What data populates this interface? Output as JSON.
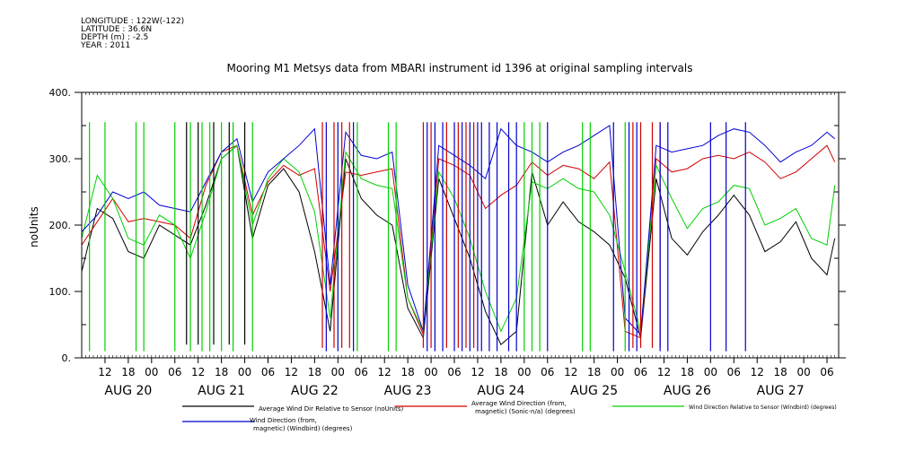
{
  "header": {
    "meta": [
      "LONGITUDE : 122W(-122)",
      "LATITUDE : 36.6N",
      "DEPTH (m) : -2.5",
      "YEAR : 2011"
    ]
  },
  "chart_data": {
    "type": "line",
    "title": "Mooring M1 Metsys data from MBARI instrument id 1396 at original sampling intervals",
    "ylabel": "noUnits",
    "xlabel": "",
    "ylim": [
      0,
      400
    ],
    "yticks": [
      0,
      100,
      200,
      300,
      400
    ],
    "ytick_labels": [
      "0.",
      "100.",
      "200.",
      "300.",
      "400."
    ],
    "x_unit": "hours since 2011-08-19 06:00",
    "xlim": [
      0,
      195
    ],
    "hour_ticks": [
      {
        "x": 6,
        "label": "12"
      },
      {
        "x": 12,
        "label": "18"
      },
      {
        "x": 18,
        "label": "00"
      },
      {
        "x": 24,
        "label": "06"
      },
      {
        "x": 30,
        "label": "12"
      },
      {
        "x": 36,
        "label": "18"
      },
      {
        "x": 42,
        "label": "00"
      },
      {
        "x": 48,
        "label": "06"
      },
      {
        "x": 54,
        "label": "12"
      },
      {
        "x": 60,
        "label": "18"
      },
      {
        "x": 66,
        "label": "00"
      },
      {
        "x": 72,
        "label": "06"
      },
      {
        "x": 78,
        "label": "12"
      },
      {
        "x": 84,
        "label": "18"
      },
      {
        "x": 90,
        "label": "00"
      },
      {
        "x": 96,
        "label": "06"
      },
      {
        "x": 102,
        "label": "12"
      },
      {
        "x": 108,
        "label": "18"
      },
      {
        "x": 114,
        "label": "00"
      },
      {
        "x": 120,
        "label": "06"
      },
      {
        "x": 126,
        "label": "12"
      },
      {
        "x": 132,
        "label": "18"
      },
      {
        "x": 138,
        "label": "00"
      },
      {
        "x": 144,
        "label": "06"
      },
      {
        "x": 150,
        "label": "12"
      },
      {
        "x": 156,
        "label": "18"
      },
      {
        "x": 162,
        "label": "00"
      },
      {
        "x": 168,
        "label": "06"
      },
      {
        "x": 174,
        "label": "12"
      },
      {
        "x": 180,
        "label": "18"
      },
      {
        "x": 186,
        "label": "00"
      },
      {
        "x": 192,
        "label": "06"
      }
    ],
    "day_labels": [
      {
        "x": 12,
        "label": "AUG 20"
      },
      {
        "x": 36,
        "label": "AUG 21"
      },
      {
        "x": 60,
        "label": "AUG 22"
      },
      {
        "x": 84,
        "label": "AUG 23"
      },
      {
        "x": 108,
        "label": "AUG 24"
      },
      {
        "x": 132,
        "label": "AUG 25"
      },
      {
        "x": 156,
        "label": "AUG 26"
      },
      {
        "x": 180,
        "label": "AUG 27"
      }
    ],
    "series": [
      {
        "name": "Average Wind Dir Relative to Sensor (noUnits)",
        "color": "#000000",
        "x": [
          0,
          4,
          8,
          12,
          16,
          20,
          24,
          28,
          32,
          36,
          40,
          44,
          48,
          52,
          56,
          60,
          64,
          68,
          72,
          76,
          80,
          84,
          88,
          92,
          96,
          100,
          104,
          108,
          112,
          116,
          120,
          124,
          128,
          132,
          136,
          140,
          144,
          148,
          152,
          156,
          160,
          164,
          168,
          172,
          176,
          180,
          184,
          188,
          192,
          194
        ],
        "y": [
          130,
          225,
          210,
          160,
          150,
          200,
          185,
          170,
          230,
          300,
          320,
          180,
          260,
          285,
          250,
          160,
          40,
          300,
          240,
          215,
          200,
          75,
          30,
          270,
          210,
          150,
          70,
          20,
          40,
          280,
          200,
          235,
          205,
          190,
          170,
          120,
          30,
          270,
          180,
          155,
          190,
          215,
          245,
          215,
          160,
          175,
          205,
          150,
          125,
          180
        ]
      },
      {
        "name": "Average Wind Direction (from, magnetic) (Sonic-n/a) (degrees)",
        "color": "#d00000",
        "x": [
          0,
          4,
          8,
          12,
          16,
          20,
          24,
          28,
          32,
          36,
          40,
          44,
          48,
          52,
          56,
          60,
          64,
          68,
          72,
          76,
          80,
          84,
          88,
          92,
          96,
          100,
          104,
          108,
          112,
          116,
          120,
          124,
          128,
          132,
          136,
          140,
          144,
          148,
          152,
          156,
          160,
          164,
          168,
          172,
          176,
          180,
          184,
          188,
          192,
          194
        ],
        "y": [
          170,
          205,
          240,
          205,
          210,
          205,
          200,
          180,
          260,
          310,
          320,
          215,
          265,
          290,
          275,
          285,
          100,
          280,
          275,
          280,
          285,
          90,
          35,
          300,
          290,
          275,
          225,
          245,
          260,
          295,
          275,
          290,
          285,
          270,
          295,
          40,
          30,
          300,
          280,
          285,
          300,
          305,
          300,
          310,
          295,
          270,
          280,
          300,
          320,
          295
        ]
      },
      {
        "name": "Wind Direction Relative to Sensor (Windbird) (degrees)",
        "color": "#00d000",
        "x": [
          0,
          4,
          8,
          12,
          16,
          20,
          24,
          28,
          32,
          36,
          40,
          44,
          48,
          52,
          56,
          60,
          64,
          68,
          72,
          76,
          80,
          84,
          88,
          92,
          96,
          100,
          104,
          108,
          112,
          116,
          120,
          124,
          128,
          132,
          136,
          140,
          144,
          148,
          152,
          156,
          160,
          164,
          168,
          172,
          176,
          180,
          184,
          188,
          192,
          194
        ],
        "y": [
          180,
          275,
          240,
          180,
          170,
          215,
          200,
          150,
          220,
          300,
          320,
          200,
          270,
          300,
          280,
          220,
          60,
          310,
          270,
          260,
          255,
          90,
          40,
          280,
          240,
          180,
          100,
          40,
          90,
          265,
          255,
          270,
          255,
          250,
          215,
          130,
          40,
          290,
          240,
          195,
          225,
          235,
          260,
          255,
          200,
          210,
          225,
          180,
          170,
          260
        ]
      },
      {
        "name": "Wind Direction (from, magnetic) (Windbird) (degrees)",
        "color": "#0000d0",
        "x": [
          0,
          4,
          8,
          12,
          16,
          20,
          24,
          28,
          32,
          36,
          40,
          44,
          48,
          52,
          56,
          60,
          64,
          68,
          72,
          76,
          80,
          84,
          88,
          92,
          96,
          100,
          104,
          108,
          112,
          116,
          120,
          124,
          128,
          132,
          136,
          140,
          144,
          148,
          152,
          156,
          160,
          164,
          168,
          172,
          176,
          180,
          184,
          188,
          192,
          194
        ],
        "y": [
          190,
          215,
          250,
          240,
          250,
          230,
          225,
          220,
          265,
          310,
          330,
          235,
          280,
          300,
          320,
          345,
          110,
          340,
          305,
          300,
          310,
          110,
          40,
          320,
          305,
          290,
          270,
          345,
          320,
          310,
          295,
          310,
          320,
          335,
          350,
          60,
          35,
          320,
          310,
          315,
          320,
          335,
          345,
          340,
          320,
          295,
          310,
          320,
          340,
          330
        ]
      }
    ],
    "spikes": [
      {
        "color": "#00d000",
        "x": [
          2,
          6,
          14,
          16,
          24,
          28,
          31,
          33,
          36,
          39,
          44,
          71,
          79,
          81,
          114,
          116,
          118,
          129,
          131,
          140
        ],
        "ymin": 10,
        "ymax": 355
      },
      {
        "color": "#d00000",
        "x": [
          62,
          65,
          67,
          69,
          88,
          90,
          94,
          97,
          99,
          101,
          142,
          144,
          147,
          149
        ],
        "ymin": 15,
        "ymax": 355
      },
      {
        "color": "#0000d0",
        "x": [
          63,
          66,
          70,
          89,
          91,
          93,
          96,
          98,
          100,
          102,
          103,
          105,
          107,
          110,
          112,
          120,
          137,
          141,
          143,
          149,
          151,
          162,
          166,
          171
        ],
        "ymin": 10,
        "ymax": 355
      },
      {
        "color": "#000000",
        "x": [
          27,
          30,
          34,
          38,
          42
        ],
        "ymin": 20,
        "ymax": 355
      }
    ]
  },
  "legend": [
    {
      "text": "Average Wind Dir Relative to Sensor (noUnits)",
      "color": "#000000"
    },
    {
      "text": "Average Wind Direction (from,\nmagnetic) (Sonic-n/a) (degrees)",
      "color": "#d00000"
    },
    {
      "text": "Wind Direction Relative to Sensor (Windbird) (degrees)",
      "color": "#00d000"
    },
    {
      "text": "Wind Direction (from,\nmagnetic) (Windbird) (degrees)",
      "color": "#0000d0"
    }
  ]
}
